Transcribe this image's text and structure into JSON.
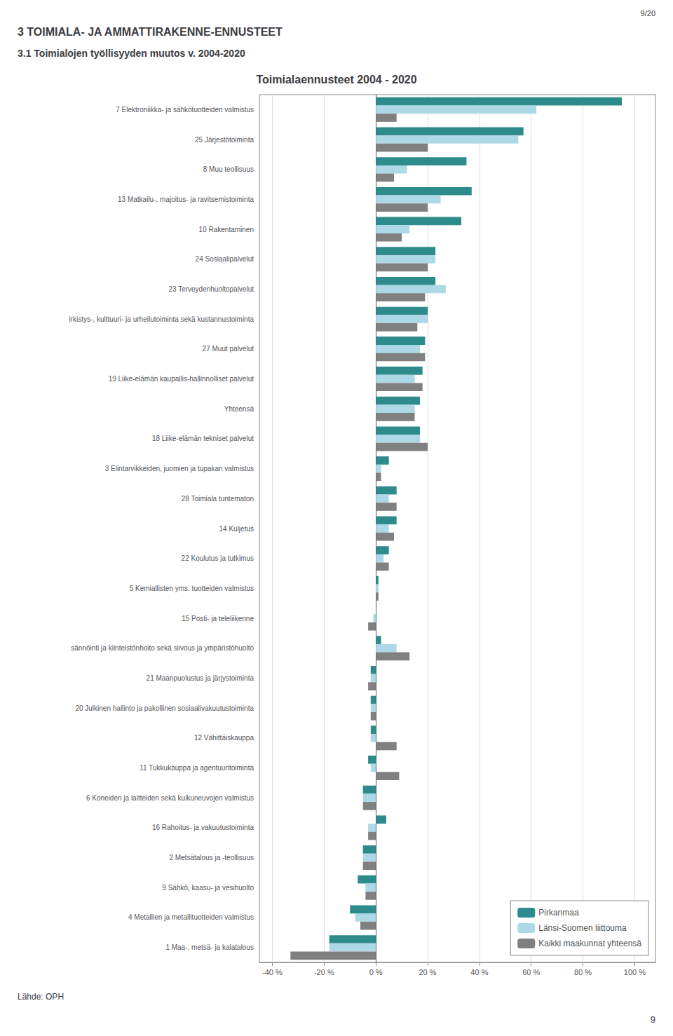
{
  "chart_data": {
    "type": "bar",
    "orientation": "horizontal",
    "title": "Toimialaennusteet 2004 - 2020",
    "annotations": [
      "9/20",
      "3 TOIMIALA- JA AMMATTIRAKENNE-ENNUSTEET",
      "3.1 Toimialojen työllisyyden muutos v. 2004-2020",
      "Lähde: OPH",
      "9"
    ],
    "categories": [
      "7 Elektroniikka- ja sähkötuotteiden valmistus",
      "25 Järjestötoiminta",
      "8 Muu teollisuus",
      "13 Matkailu-, majoitus- ja ravitsemistoiminta",
      "10 Rakentaminen",
      "24 Sosiaalipalvelut",
      "23 Terveydenhuoltopalvelut",
      "irkistys-, kulttuuri- ja urheilutoiminta sekä kustannustoiminta",
      "27 Muut palvelut",
      "19 Liike-elämän kaupallis-hallinnolliset palvelut",
      "Yhteensä",
      "18 Liike-elämän tekniset palvelut",
      "3 Elintarvikkeiden, juomien ja tupakan valmistus",
      "28 Toimiala tuntematon",
      "14 Kuljetus",
      "22 Koulutus ja tutkimus",
      "5 Kemiallisten yms. tuotteiden valmistus",
      "15 Posti- ja teleliikenne",
      "sännöinti ja kiinteistönhoito sekä siivous ja ympäristöhuolto",
      "21 Maanpuolustus ja järjystoiminta",
      "20 Julkinen hallinto ja pakollinen sosiaalivakuutustoiminta",
      "12 Vähittäiskauppa",
      "11 Tukkukauppa ja agentuuritoiminta",
      "6 Koneiden ja laitteiden sekä kulkuneuvojen valmistus",
      "16 Rahoitus- ja vakuutustoiminta",
      "2 Metsätalous ja -teollisuus",
      "9 Sähkö, kaasu- ja vesihuolto",
      "4 Metallien ja metallituotteiden valmistus",
      "1 Maa-, metsä- ja kalatalous"
    ],
    "series": [
      {
        "name": "Pirkanmaa",
        "color": "#2e8b8b",
        "values": [
          95,
          57,
          35,
          37,
          33,
          23,
          23,
          20,
          19,
          18,
          17,
          17,
          5,
          8,
          8,
          5,
          1,
          0,
          2,
          -2,
          -2,
          -2,
          -3,
          -5,
          4,
          -5,
          -7,
          -10,
          -18
        ]
      },
      {
        "name": "Länsi-Suomen liittouma",
        "color": "#add8e6",
        "values": [
          62,
          55,
          12,
          25,
          13,
          23,
          27,
          20,
          17,
          15,
          15,
          17,
          2,
          5,
          5,
          3,
          1,
          -1,
          8,
          -2,
          -2,
          -2,
          -2,
          -5,
          -3,
          -5,
          -4,
          -8,
          -18
        ]
      },
      {
        "name": "Kaikki maakunnat yhteensä",
        "color": "#808080",
        "values": [
          8,
          20,
          7,
          20,
          10,
          20,
          19,
          16,
          19,
          18,
          15,
          20,
          2,
          8,
          7,
          5,
          1,
          -3,
          13,
          -3,
          -2,
          8,
          9,
          -5,
          -3,
          -5,
          -4,
          -6,
          -33
        ]
      }
    ],
    "xlim": [
      -45,
      108
    ],
    "xticks": [
      {
        "value": -40,
        "label": "-40 %"
      },
      {
        "value": -20,
        "label": "-20 %"
      },
      {
        "value": 0,
        "label": "0 %"
      },
      {
        "value": 20,
        "label": "20 %"
      },
      {
        "value": 40,
        "label": "40 %"
      },
      {
        "value": 60,
        "label": "60 %"
      },
      {
        "value": 80,
        "label": "80 %"
      },
      {
        "value": 100,
        "label": "100 %"
      }
    ],
    "grid": true,
    "legend": "lower right"
  }
}
